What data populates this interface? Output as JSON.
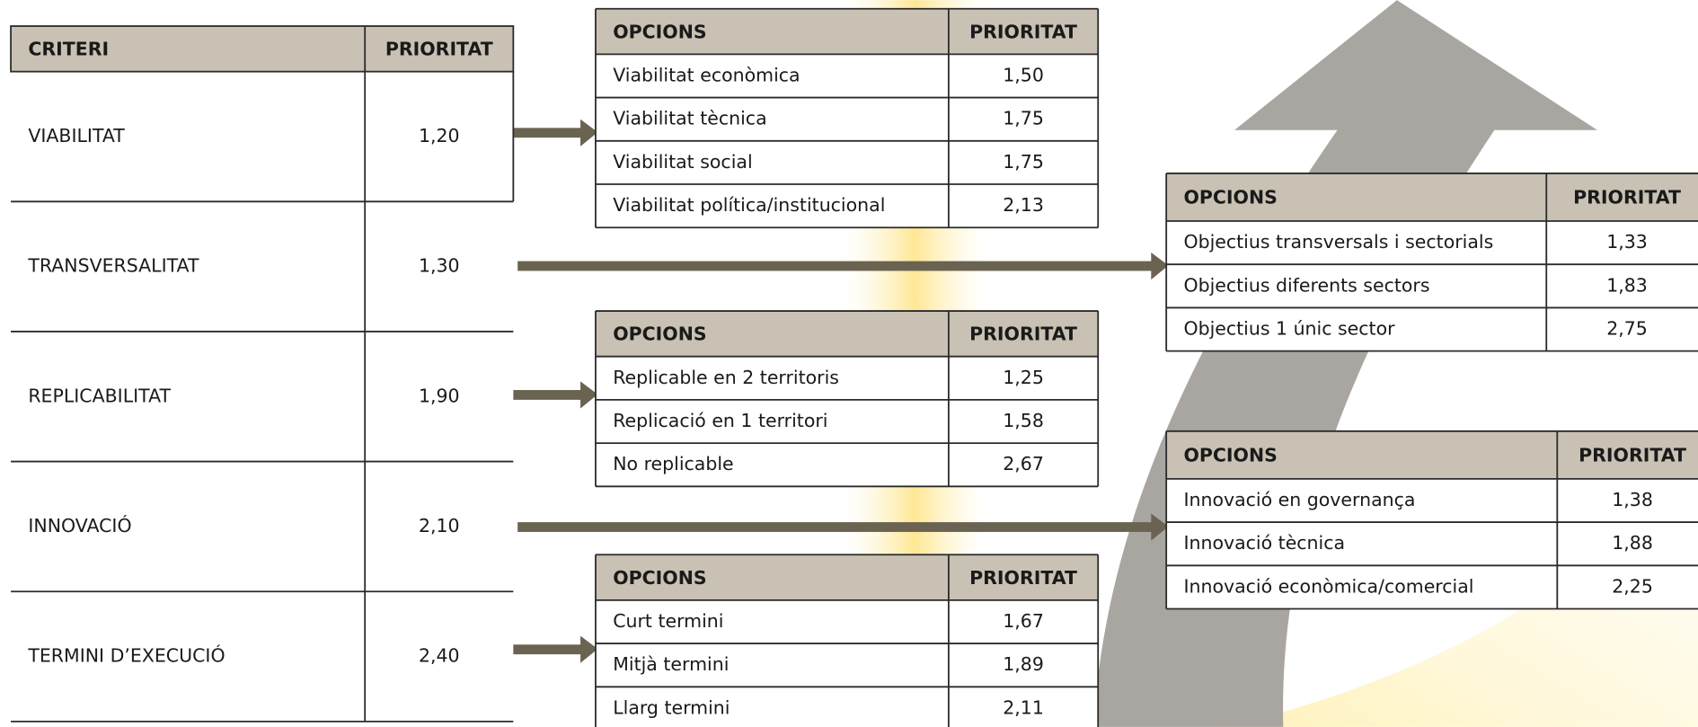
{
  "criteria_table": {
    "headers": [
      "CRITERI",
      "PRIORITAT"
    ],
    "rows": [
      [
        "VIABILITAT",
        "1,20"
      ],
      [
        "TRANSVERSALITAT",
        "1,30"
      ],
      [
        "REPLICABILITAT",
        "1,90"
      ],
      [
        "INNOVACIÓ",
        "2,10"
      ],
      [
        "TERMINI D’EXECUCIÓ",
        "2,40"
      ]
    ]
  },
  "option_tables": [
    {
      "headers": [
        "OPCIONS",
        "PRIORITAT"
      ],
      "rows": [
        [
          "Viabilitat econòmica",
          "1,50"
        ],
        [
          "Viabilitat tècnica",
          "1,75"
        ],
        [
          "Viabilitat social",
          "1,75"
        ],
        [
          "Viabilitat política/institucional",
          "2,13"
        ]
      ]
    },
    {
      "headers": [
        "OPCIONS",
        "PRIORITAT"
      ],
      "rows": [
        [
          "Objectius transversals i sectorials",
          "1,33"
        ],
        [
          "Objectius diferents sectors",
          "1,83"
        ],
        [
          "Objectius 1 únic sector",
          "2,75"
        ]
      ]
    },
    {
      "headers": [
        "OPCIONS",
        "PRIORITAT"
      ],
      "rows": [
        [
          "Replicable en 2 territoris",
          "1,25"
        ],
        [
          "Replicació en 1 territori",
          "1,58"
        ],
        [
          "No replicable",
          "2,67"
        ]
      ]
    },
    {
      "headers": [
        "OPCIONS",
        "PRIORITAT"
      ],
      "rows": [
        [
          "Innovació en governança",
          "1,38"
        ],
        [
          "Innovació tècnica",
          "1,88"
        ],
        [
          "Innovació econòmica/comercial",
          "2,25"
        ]
      ]
    },
    {
      "headers": [
        "OPCIONS",
        "PRIORITAT"
      ],
      "rows": [
        [
          "Curt termini",
          "1,67"
        ],
        [
          "Mitjà termini",
          "1,89"
        ],
        [
          "Llarg termini",
          "2,11"
        ]
      ]
    }
  ]
}
